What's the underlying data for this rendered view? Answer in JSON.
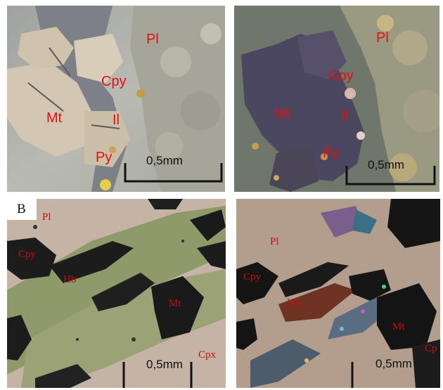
{
  "panels": {
    "top_left": {
      "labels": {
        "pl": "Pl",
        "cpy": "Cpy",
        "mt": "Mt",
        "il": "Il",
        "py": "Py"
      },
      "scale": "0,5mm"
    },
    "top_right": {
      "labels": {
        "pl": "Pl",
        "cpy": "Cpy",
        "mt": "Mt",
        "il": "Il",
        "py": "Py"
      },
      "scale": "0,5mm"
    },
    "bottom_left": {
      "letter": "B",
      "labels": {
        "pl": "Pl",
        "cpy": "Cpy",
        "hb": "Hb",
        "mt": "Mt",
        "cpx": "Cpx"
      },
      "scale": "0,5mm"
    },
    "bottom_right": {
      "labels": {
        "pl": "Pl",
        "cpy": "Cpy",
        "hb": "Hb",
        "mt": "Mt",
        "cp": "Cp"
      },
      "scale": "0,5mm"
    }
  },
  "colors": {
    "label_red": "#e01010",
    "scale_black": "#111111",
    "ppl_background": "#b9b9ad",
    "xpl_background": "#6e7468",
    "opaque_dark": "#1c1c1c"
  }
}
